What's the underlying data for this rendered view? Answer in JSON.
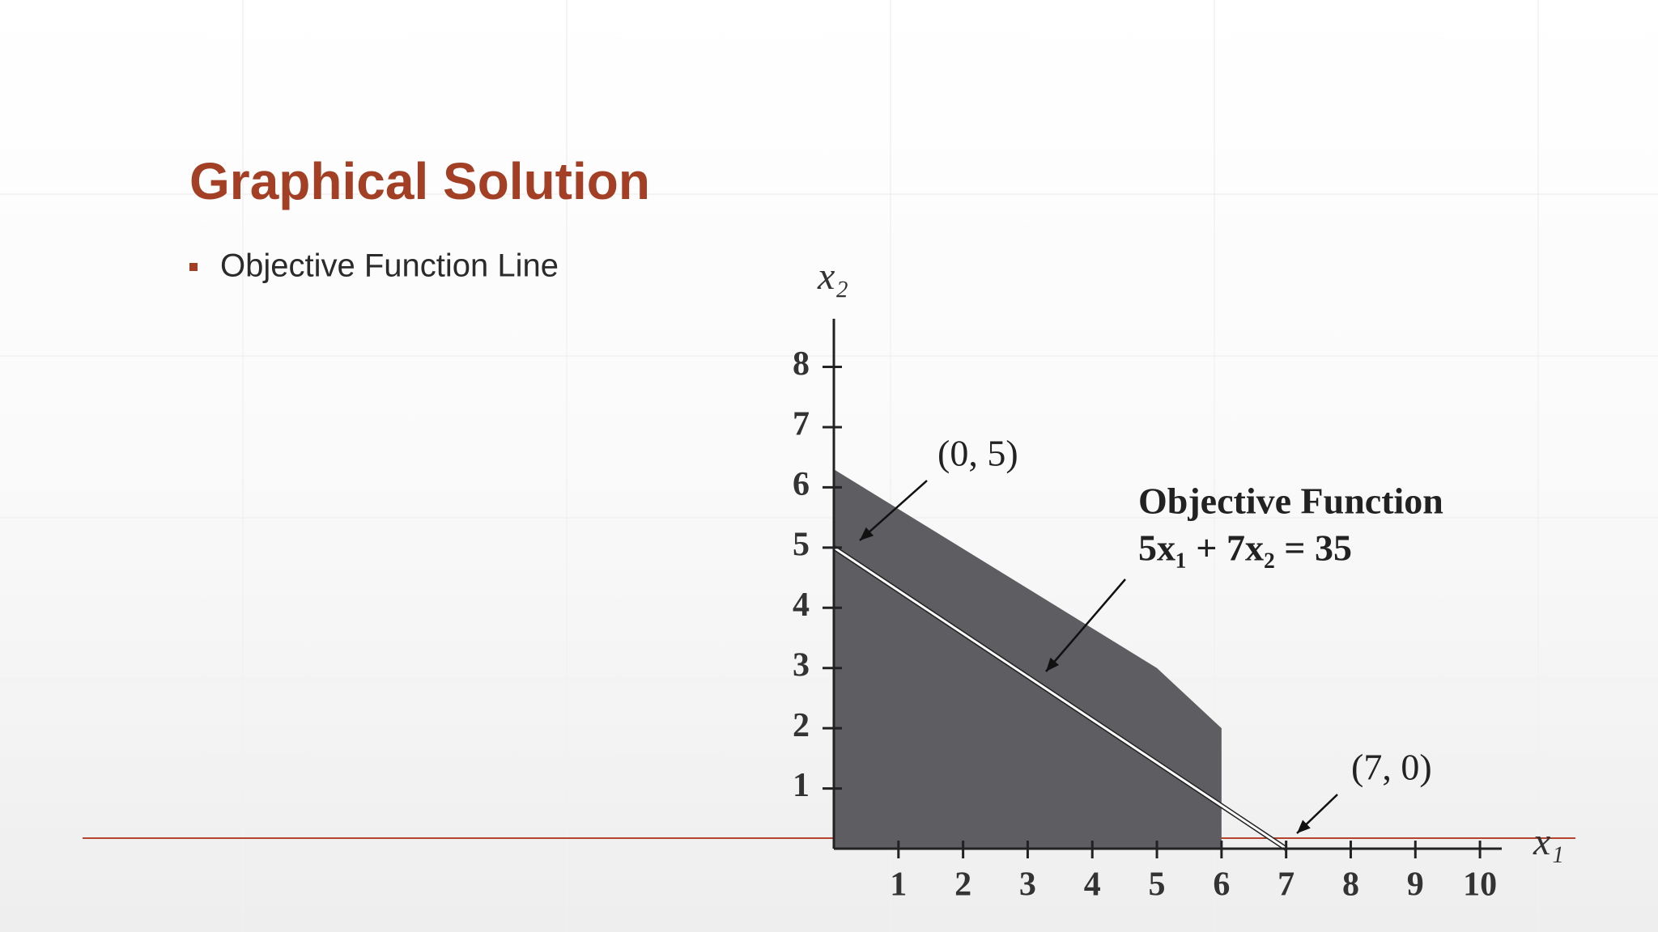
{
  "slide": {
    "title": "Graphical Solution",
    "bullets": [
      "Objective Function Line"
    ]
  },
  "chart_data": {
    "type": "area",
    "x_label": "x₁",
    "y_label": "x₂",
    "xlim": [
      0,
      10.5
    ],
    "ylim": [
      0,
      8.8
    ],
    "xticks": [
      1,
      2,
      3,
      4,
      5,
      6,
      7,
      8,
      9,
      10
    ],
    "yticks": [
      1,
      2,
      3,
      4,
      5,
      6,
      7,
      8
    ],
    "region": {
      "x": [
        0,
        0,
        5,
        6,
        6
      ],
      "y": [
        0,
        6.3,
        3,
        2,
        0
      ],
      "color": "#5e5d61"
    },
    "line": {
      "x": [
        0,
        7
      ],
      "y": [
        5,
        0
      ],
      "color": "#ffffff"
    },
    "annotations": [
      "(0, 5)",
      "Objective Function",
      "5x₁ + 7x₂ = 35",
      "(7, 0)"
    ]
  }
}
